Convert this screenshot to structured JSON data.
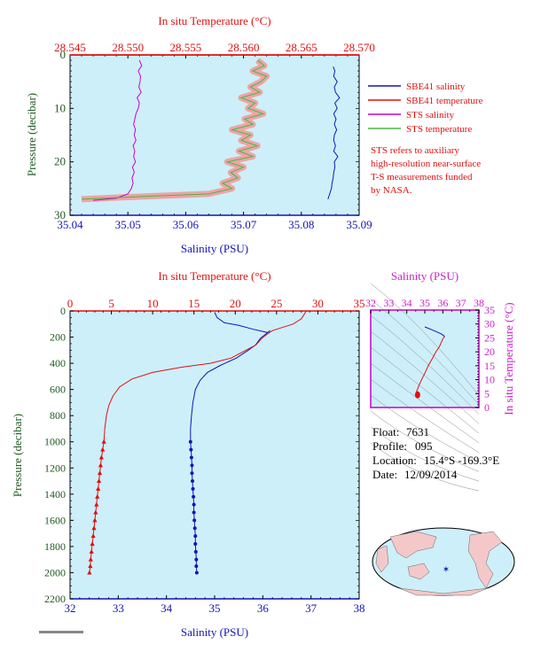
{
  "colors": {
    "plot_bg": "#cdeffa",
    "salinity": "#1414b4",
    "temperature": "#e01010",
    "sts_salinity": "#cc00cc",
    "sts_temperature": "#49b649",
    "sts_temperature_fill": "#f29b9b",
    "left_axis": "#1e5a1e",
    "ts_axis": "#cc22cc"
  },
  "top_panel": {
    "top_label": "In situ Temperature (°C)",
    "bottom_label": "Salinity (PSU)",
    "left_label": "Pressure (decibar)",
    "top_ticks": [
      "28.545",
      "28.550",
      "28.555",
      "28.560",
      "28.565",
      "28.570"
    ],
    "bottom_ticks": [
      "35.04",
      "35.05",
      "35.06",
      "35.07",
      "35.08",
      "35.09"
    ],
    "left_ticks": [
      "0",
      "10",
      "20",
      "30"
    ],
    "legend": [
      {
        "label": "SBE41 salinity",
        "color": "#1414b4"
      },
      {
        "label": "SBE41 temperature",
        "color": "#e01010"
      },
      {
        "label": "STS salinity",
        "color": "#cc00cc"
      },
      {
        "label": "STS temperature",
        "color": "#49b649"
      }
    ],
    "note": [
      "STS refers to auxiliary",
      "high-resolution near-surface",
      "T-S measurements funded",
      "by NASA."
    ]
  },
  "bottom_panel": {
    "top_label": "In situ Temperature (°C)",
    "bottom_label": "Salinity (PSU)",
    "left_label": "Pressure (decibar)",
    "top_ticks": [
      "0",
      "5",
      "10",
      "15",
      "20",
      "25",
      "30",
      "35"
    ],
    "bottom_ticks": [
      "32",
      "33",
      "34",
      "35",
      "36",
      "37",
      "38"
    ],
    "left_ticks": [
      "0",
      "200",
      "400",
      "600",
      "800",
      "1000",
      "1200",
      "1400",
      "1600",
      "1800",
      "2000",
      "2200"
    ]
  },
  "ts_panel": {
    "top_label": "Salinity (PSU)",
    "right_label": "In situ Temperature (°C)",
    "top_ticks": [
      "32",
      "33",
      "34",
      "35",
      "36",
      "37",
      "38"
    ],
    "right_ticks": [
      "0",
      "5",
      "10",
      "15",
      "20",
      "25",
      "30",
      "35"
    ]
  },
  "info": {
    "float_label": "Float:",
    "float_value": "7631",
    "profile_label": "Profile:",
    "profile_value": "095",
    "location_label": "Location:",
    "location_value": "15.4°S  -169.3°E",
    "date_label": "Date:",
    "date_value": "12/09/2014"
  },
  "chart_data": [
    {
      "type": "line",
      "panel": "top",
      "title": "",
      "xlabel": "Salinity (PSU)",
      "x2label": "In situ Temperature (°C)",
      "ylabel": "Pressure (decibar)",
      "xlim": [
        35.04,
        35.09
      ],
      "x2lim": [
        28.545,
        28.57
      ],
      "ylim": [
        30,
        0
      ],
      "y_inverted": true,
      "legend_position": "right",
      "series": [
        {
          "name": "SBE41 salinity",
          "axis": "salinity",
          "points": [
            [
              35.0855,
              2.2
            ],
            [
              35.0858,
              3
            ],
            [
              35.0856,
              4
            ],
            [
              35.0862,
              5
            ],
            [
              35.0857,
              6
            ],
            [
              35.0859,
              7
            ],
            [
              35.0866,
              8
            ],
            [
              35.0858,
              9
            ],
            [
              35.0862,
              10
            ],
            [
              35.0856,
              11
            ],
            [
              35.086,
              12
            ],
            [
              35.0857,
              13
            ],
            [
              35.0861,
              14
            ],
            [
              35.0857,
              15
            ],
            [
              35.0856,
              16
            ],
            [
              35.0859,
              17
            ],
            [
              35.0856,
              18
            ],
            [
              35.0863,
              19
            ],
            [
              35.0857,
              20
            ],
            [
              35.0858,
              21
            ],
            [
              35.0856,
              22
            ],
            [
              35.0855,
              23
            ],
            [
              35.0853,
              24
            ],
            [
              35.0852,
              25
            ],
            [
              35.0849,
              26
            ],
            [
              35.0846,
              27
            ]
          ]
        },
        {
          "name": "SBE41 temperature",
          "axis": "temperature",
          "points": []
        },
        {
          "name": "STS salinity",
          "axis": "salinity",
          "points": [
            [
              35.052,
              1
            ],
            [
              35.0524,
              2
            ],
            [
              35.0518,
              3
            ],
            [
              35.0522,
              4
            ],
            [
              35.0521,
              5
            ],
            [
              35.0519,
              6
            ],
            [
              35.0523,
              7
            ],
            [
              35.0516,
              8
            ],
            [
              35.052,
              9
            ],
            [
              35.0518,
              10
            ],
            [
              35.0514,
              11
            ],
            [
              35.0512,
              12
            ],
            [
              35.051,
              13
            ],
            [
              35.0513,
              14
            ],
            [
              35.0511,
              15
            ],
            [
              35.0514,
              16
            ],
            [
              35.0509,
              17
            ],
            [
              35.0512,
              18
            ],
            [
              35.051,
              19
            ],
            [
              35.0513,
              20
            ],
            [
              35.0508,
              21
            ],
            [
              35.0511,
              22
            ],
            [
              35.0507,
              23
            ],
            [
              35.0509,
              24
            ],
            [
              35.0506,
              25
            ],
            [
              35.05,
              26
            ],
            [
              35.048,
              26.8
            ],
            [
              35.044,
              27.2
            ]
          ]
        },
        {
          "name": "STS temperature",
          "axis": "temperature",
          "points": [
            [
              28.5612,
              1
            ],
            [
              28.5618,
              2
            ],
            [
              28.5608,
              3
            ],
            [
              28.562,
              4
            ],
            [
              28.5615,
              5
            ],
            [
              28.5606,
              6
            ],
            [
              28.5614,
              7
            ],
            [
              28.5598,
              8
            ],
            [
              28.561,
              9
            ],
            [
              28.5604,
              10
            ],
            [
              28.5617,
              11
            ],
            [
              28.5601,
              12
            ],
            [
              28.5608,
              13
            ],
            [
              28.559,
              14
            ],
            [
              28.5606,
              15
            ],
            [
              28.5598,
              16
            ],
            [
              28.5612,
              17
            ],
            [
              28.5596,
              18
            ],
            [
              28.5608,
              19
            ],
            [
              28.5586,
              20
            ],
            [
              28.56,
              21
            ],
            [
              28.5589,
              22
            ],
            [
              28.5595,
              23
            ],
            [
              28.5582,
              24
            ],
            [
              28.559,
              25
            ],
            [
              28.557,
              26
            ],
            [
              28.55,
              26.6
            ],
            [
              28.546,
              27
            ]
          ]
        }
      ]
    },
    {
      "type": "line",
      "panel": "bottom",
      "title": "",
      "xlabel": "Salinity (PSU)",
      "x2label": "In situ Temperature (°C)",
      "ylabel": "Pressure (decibar)",
      "xlim": [
        32,
        38
      ],
      "x2lim": [
        0,
        35
      ],
      "ylim": [
        2200,
        0
      ],
      "y_inverted": true,
      "series": [
        {
          "axis": "salinity",
          "color_key": "salinity",
          "points": [
            [
              35.0,
              10
            ],
            [
              35.05,
              50
            ],
            [
              35.2,
              90
            ],
            [
              35.5,
              110
            ],
            [
              35.8,
              140
            ],
            [
              36.1,
              165
            ],
            [
              36.15,
              150
            ],
            [
              36.05,
              180
            ],
            [
              35.95,
              210
            ],
            [
              35.85,
              260
            ],
            [
              35.7,
              300
            ],
            [
              35.45,
              360
            ],
            [
              35.1,
              420
            ],
            [
              34.85,
              470
            ],
            [
              34.7,
              530
            ],
            [
              34.6,
              600
            ],
            [
              34.55,
              700
            ],
            [
              34.52,
              800
            ],
            [
              34.5,
              900
            ],
            [
              34.5,
              1000
            ]
          ]
        },
        {
          "axis": "salinity",
          "color_key": "salinity",
          "markers": true,
          "points": [
            [
              34.5,
              1000
            ],
            [
              34.51,
              1060
            ],
            [
              34.52,
              1120
            ],
            [
              34.53,
              1180
            ],
            [
              34.53,
              1240
            ],
            [
              34.54,
              1300
            ],
            [
              34.55,
              1360
            ],
            [
              34.56,
              1420
            ],
            [
              34.57,
              1480
            ],
            [
              34.57,
              1540
            ],
            [
              34.58,
              1600
            ],
            [
              34.59,
              1660
            ],
            [
              34.6,
              1720
            ],
            [
              34.6,
              1780
            ],
            [
              34.61,
              1840
            ],
            [
              34.62,
              1900
            ],
            [
              34.62,
              1950
            ],
            [
              34.63,
              2000
            ]
          ]
        },
        {
          "axis": "temperature",
          "color_key": "temperature",
          "points": [
            [
              28.6,
              0
            ],
            [
              28.4,
              20
            ],
            [
              28.0,
              60
            ],
            [
              27.0,
              100
            ],
            [
              25.5,
              130
            ],
            [
              24.5,
              150
            ],
            [
              23.8,
              180
            ],
            [
              23.2,
              210
            ],
            [
              22.5,
              260
            ],
            [
              21.3,
              300
            ],
            [
              19.5,
              360
            ],
            [
              17.0,
              400
            ],
            [
              13.5,
              430
            ],
            [
              10.0,
              470
            ],
            [
              7.5,
              520
            ],
            [
              6.0,
              580
            ],
            [
              5.2,
              650
            ],
            [
              4.7,
              720
            ],
            [
              4.4,
              800
            ],
            [
              4.2,
              900
            ],
            [
              4.1,
              1000
            ]
          ]
        },
        {
          "axis": "temperature",
          "color_key": "temperature",
          "markers": true,
          "points": [
            [
              4.1,
              1000
            ],
            [
              3.95,
              1060
            ],
            [
              3.8,
              1120
            ],
            [
              3.7,
              1180
            ],
            [
              3.6,
              1240
            ],
            [
              3.5,
              1300
            ],
            [
              3.4,
              1360
            ],
            [
              3.3,
              1420
            ],
            [
              3.2,
              1480
            ],
            [
              3.1,
              1540
            ],
            [
              3.0,
              1600
            ],
            [
              2.9,
              1660
            ],
            [
              2.8,
              1720
            ],
            [
              2.7,
              1780
            ],
            [
              2.6,
              1840
            ],
            [
              2.5,
              1900
            ],
            [
              2.45,
              1950
            ],
            [
              2.35,
              2000
            ]
          ]
        }
      ]
    },
    {
      "type": "line",
      "panel": "ts",
      "title": "",
      "xlabel": "Salinity (PSU)",
      "ylabel": "In situ Temperature (°C)",
      "xlim": [
        32,
        38
      ],
      "ylim": [
        -2,
        35
      ],
      "grid": false,
      "series": [
        {
          "axis": "ts",
          "color_key": "temperature",
          "points": [
            [
              36.1,
              25
            ],
            [
              36.0,
              24
            ],
            [
              35.9,
              22.5
            ],
            [
              35.8,
              21
            ],
            [
              35.6,
              19
            ],
            [
              35.45,
              17
            ],
            [
              35.2,
              14
            ],
            [
              35.0,
              11
            ],
            [
              34.85,
              9
            ],
            [
              34.75,
              7.5
            ],
            [
              34.65,
              6
            ],
            [
              34.6,
              5
            ],
            [
              34.55,
              4.2
            ],
            [
              34.52,
              3.5
            ],
            [
              34.55,
              3
            ],
            [
              34.58,
              2.6
            ],
            [
              34.62,
              2.3
            ]
          ]
        },
        {
          "axis": "ts",
          "color_key": "salinity",
          "points": [
            [
              35.0,
              28.6
            ],
            [
              35.4,
              27.5
            ],
            [
              35.9,
              26
            ],
            [
              36.1,
              25
            ]
          ]
        }
      ]
    }
  ]
}
